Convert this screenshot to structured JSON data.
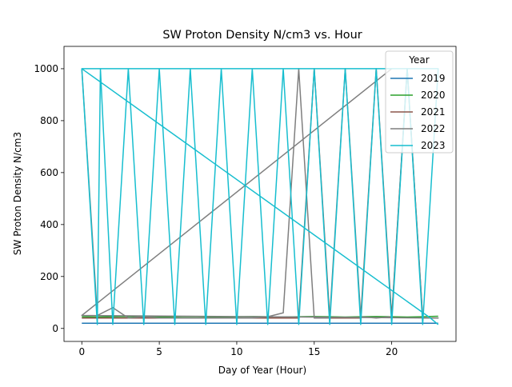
{
  "chart_data": {
    "type": "line",
    "title": "SW Proton Density N/cm3 vs. Hour",
    "xlabel": "Day of Year (Hour)",
    "ylabel": "SW Proton Density N/cm3",
    "xlim": [
      -1.15,
      24.15
    ],
    "ylim": [
      -50,
      1086
    ],
    "xticks": [
      0,
      5,
      10,
      15,
      20
    ],
    "yticks": [
      0,
      200,
      400,
      600,
      800,
      1000
    ],
    "legend_title": "Year",
    "legend_position": "upper right",
    "series": [
      {
        "name": "2019",
        "color": "#1f77b4",
        "x": [
          0,
          1,
          2,
          3,
          4,
          5,
          6,
          7,
          8,
          9,
          10,
          11,
          12,
          13,
          14,
          15,
          16,
          17,
          18,
          19,
          20,
          21,
          22,
          23
        ],
        "values": [
          20,
          20,
          20,
          20,
          20,
          20,
          20,
          20,
          20,
          20,
          20,
          20,
          20,
          20,
          20,
          20,
          20,
          20,
          20,
          20,
          20,
          20,
          20,
          20
        ]
      },
      {
        "name": "2020",
        "color": "#2ca02c",
        "x": [
          0,
          1,
          2,
          3,
          4,
          5,
          6,
          7,
          8,
          9,
          10,
          11,
          12,
          13,
          14,
          15,
          16,
          17,
          18,
          19,
          20,
          21,
          22,
          23
        ],
        "values": [
          45,
          44,
          45,
          46,
          45,
          44,
          45,
          46,
          45,
          44,
          45,
          46,
          45,
          44,
          45,
          46,
          45,
          44,
          45,
          46,
          45,
          44,
          45,
          47
        ]
      },
      {
        "name": "2021",
        "color": "#8c564b",
        "x": [
          0,
          1,
          2,
          3,
          4,
          5,
          6,
          7,
          8,
          9,
          10,
          11,
          12,
          13,
          14,
          15,
          16,
          17,
          18,
          19,
          20,
          21,
          22,
          23
        ],
        "values": [
          40,
          40,
          40,
          40,
          40,
          40,
          40,
          40,
          40,
          40,
          40,
          40,
          40,
          40,
          40,
          1000,
          40,
          40,
          40,
          1000,
          40,
          1000,
          40,
          40
        ]
      },
      {
        "name": "2022",
        "color": "#7f7f7f",
        "x": [
          0,
          1,
          2,
          3,
          4,
          5,
          6,
          7,
          8,
          9,
          10,
          11,
          12,
          13,
          14,
          15,
          16,
          17,
          18,
          19,
          20,
          21,
          22,
          23,
          0,
          20
        ],
        "values": [
          1000,
          50,
          80,
          40,
          45,
          40,
          40,
          40,
          40,
          40,
          40,
          40,
          45,
          60,
          1000,
          40,
          40,
          1000,
          45,
          40,
          45,
          1000,
          40,
          40,
          50,
          1000
        ]
      },
      {
        "name": "2023",
        "color": "#17becf",
        "x": [
          0,
          1,
          1.2,
          2,
          3,
          4,
          5,
          6,
          7,
          8,
          9,
          10,
          11,
          12,
          13,
          14,
          15,
          16,
          17,
          18,
          19,
          20,
          21,
          22,
          23,
          0,
          22.5,
          23
        ],
        "values": [
          1000,
          15,
          1000,
          15,
          1000,
          15,
          1000,
          15,
          1000,
          15,
          1000,
          15,
          1000,
          15,
          1000,
          15,
          1000,
          15,
          1000,
          15,
          1000,
          15,
          1000,
          15,
          1000,
          1000,
          40,
          15
        ]
      }
    ]
  }
}
